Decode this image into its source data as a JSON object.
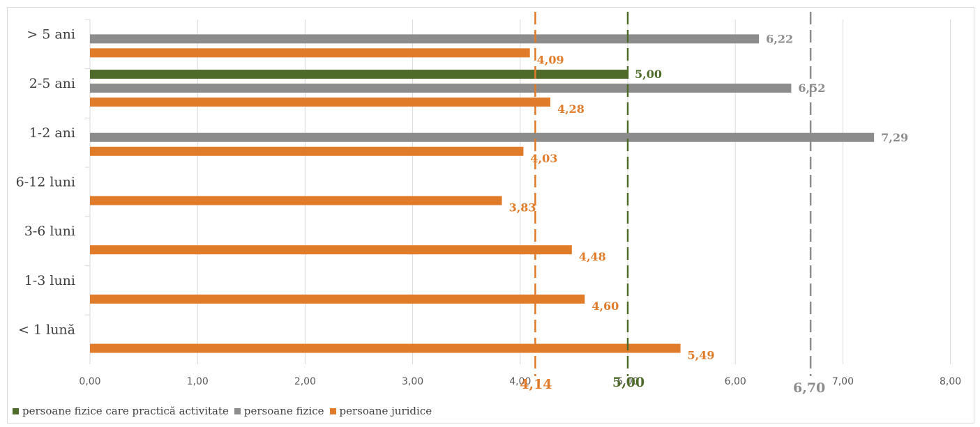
{
  "chart_data": {
    "type": "bar",
    "orientation": "horizontal",
    "categories": [
      "> 5 ani",
      "2-5 ani",
      "1-2 ani",
      "6-12 luni",
      "3-6 luni",
      "1-3 luni",
      "< 1 lună"
    ],
    "series": [
      {
        "name": "persoane fizice care practică activitate",
        "color": "#4e6b2a",
        "values": [
          null,
          5.0,
          null,
          null,
          null,
          null,
          null
        ],
        "labels": [
          "",
          "5,00",
          "",
          "",
          "",
          "",
          ""
        ]
      },
      {
        "name": "persoane fizice",
        "color": "#8c8c8c",
        "values": [
          6.22,
          6.52,
          7.29,
          null,
          null,
          null,
          null
        ],
        "labels": [
          "6,22",
          "6,52",
          "7,29",
          "",
          "",
          "",
          ""
        ]
      },
      {
        "name": "persoane juridice",
        "color": "#e07b2a",
        "values": [
          4.09,
          4.28,
          4.03,
          3.83,
          4.48,
          4.6,
          5.49
        ],
        "labels": [
          "4,09",
          "4,28",
          "4,03",
          "3,83",
          "4,48",
          "4,60",
          "5,49"
        ]
      }
    ],
    "xlim": [
      0,
      8
    ],
    "xticks": [
      "0,00",
      "1,00",
      "2,00",
      "3,00",
      "4,00",
      "5,00",
      "6,00",
      "7,00",
      "8,00"
    ],
    "reference_lines": [
      {
        "value": 4.14,
        "label": "4,14",
        "color": "#e07b2a"
      },
      {
        "value": 5.0,
        "label": "5,00",
        "color": "#4e6b2a"
      },
      {
        "value": 6.7,
        "label": "6,70",
        "color": "#8c8c8c"
      }
    ],
    "grid": true,
    "legend_position": "bottom-left"
  }
}
